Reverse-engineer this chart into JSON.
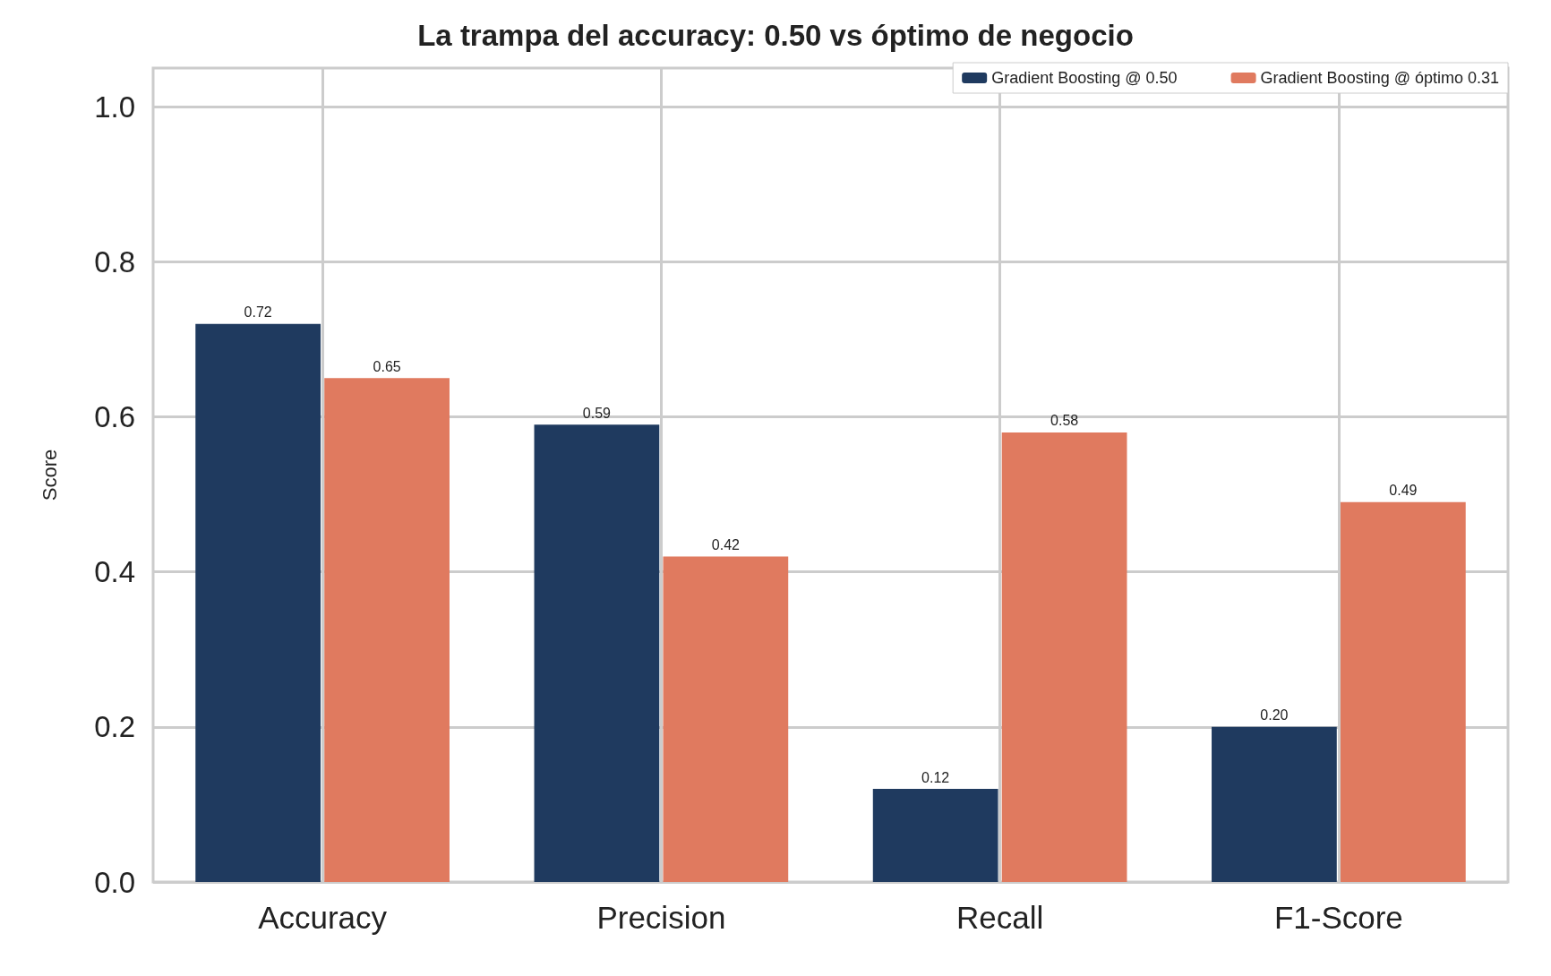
{
  "chart_data": {
    "type": "bar",
    "title": "La trampa del accuracy: 0.50 vs óptimo de negocio",
    "ylabel": "Score",
    "categories": [
      "Accuracy",
      "Precision",
      "Recall",
      "F1-Score"
    ],
    "series": [
      {
        "name": "Gradient Boosting @ 0.50",
        "color": "#1f3a5f",
        "values": [
          0.72,
          0.59,
          0.12,
          0.2
        ],
        "value_labels": [
          "0.72",
          "0.59",
          "0.12",
          "0.20"
        ]
      },
      {
        "name": "Gradient Boosting @ óptimo 0.31",
        "color": "#e07a5f",
        "values": [
          0.65,
          0.42,
          0.58,
          0.49
        ],
        "value_labels": [
          "0.65",
          "0.42",
          "0.58",
          "0.49"
        ]
      }
    ],
    "ylim": [
      0,
      1.05
    ],
    "yticks": [
      {
        "value": 0,
        "label": "0.0"
      },
      {
        "value": 0.2,
        "label": "0.2"
      },
      {
        "value": 0.4,
        "label": "0.4"
      },
      {
        "value": 0.6,
        "label": "0.6"
      },
      {
        "value": 0.8,
        "label": "0.8"
      },
      {
        "value": 1,
        "label": "1.0"
      }
    ],
    "grid": true,
    "legend": "top right"
  }
}
